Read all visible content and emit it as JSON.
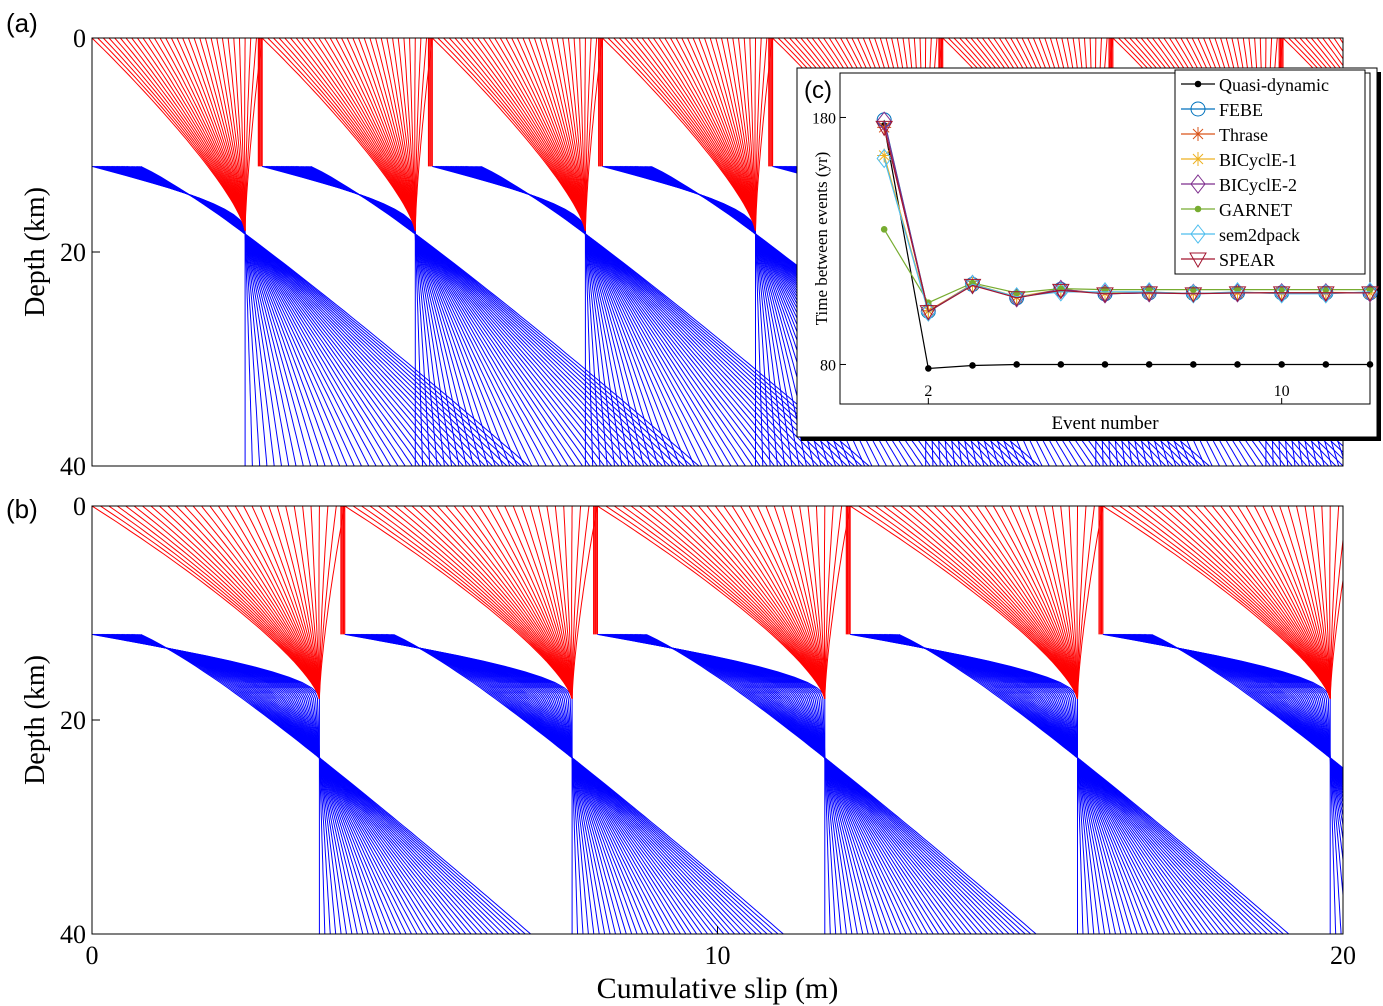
{
  "chart_data": [
    {
      "type": "contour",
      "panel_label": "(a)",
      "ylabel": "Depth (km)",
      "xlim": [
        0,
        20
      ],
      "ylim": [
        0,
        40
      ],
      "yticks": [
        0,
        20,
        40
      ],
      "y_inverted": true,
      "line_colors": [
        "#0000ff",
        "#ff0000"
      ]
    },
    {
      "type": "contour",
      "panel_label": "(b)",
      "ylabel": "Depth (km)",
      "xlabel": "Cumulative slip (m)",
      "xlim": [
        0,
        20
      ],
      "ylim": [
        0,
        40
      ],
      "xticks": [
        0,
        10,
        20
      ],
      "yticks": [
        0,
        20,
        40
      ],
      "y_inverted": true,
      "line_colors": [
        "#0000ff",
        "#ff0000"
      ]
    },
    {
      "type": "line",
      "panel_label": "(c)",
      "xlabel": "Event number",
      "ylabel": "Time between events (yr)",
      "x": [
        1,
        2,
        3,
        4,
        5,
        6,
        7,
        8,
        9,
        10,
        11,
        12
      ],
      "xlim": [
        0,
        12
      ],
      "xticks": [
        2,
        10
      ],
      "ylim": [
        64,
        198
      ],
      "yticks": [
        80,
        180
      ],
      "series": [
        {
          "name": "Quasi-dynamic",
          "color": "#000000",
          "marker": "dot",
          "values": [
            176.8,
            78.4,
            79.6,
            80,
            80,
            80,
            80,
            80,
            80,
            80,
            80,
            80
          ]
        },
        {
          "name": "FEBE",
          "color": "#0072bd",
          "marker": "circle",
          "values": [
            179,
            101.5,
            112.4,
            107,
            110.4,
            108.6,
            109,
            108.8,
            109,
            109,
            109,
            109
          ]
        },
        {
          "name": "Thrase",
          "color": "#d95319",
          "marker": "star",
          "values": [
            176,
            101.8,
            112.2,
            107.2,
            110.2,
            108.8,
            109.2,
            108.8,
            109,
            109,
            109,
            109
          ]
        },
        {
          "name": "BICyclE-1",
          "color": "#edb120",
          "marker": "star",
          "values": [
            164.6,
            101.6,
            112.6,
            107.4,
            110.4,
            108.8,
            109.2,
            108.8,
            109.2,
            109,
            109.2,
            109
          ]
        },
        {
          "name": "BICyclE-2",
          "color": "#7e2f8e",
          "marker": "diamond",
          "values": [
            178.5,
            101.4,
            112.4,
            107,
            110.4,
            108.6,
            109,
            108.8,
            109,
            109,
            109,
            109
          ]
        },
        {
          "name": "GARNET",
          "color": "#77ac30",
          "marker": "dot",
          "values": [
            134.7,
            105,
            113,
            109,
            110.7,
            110.3,
            110.3,
            110.3,
            110.3,
            110.3,
            110.3,
            110.3
          ]
        },
        {
          "name": "sem2dpack",
          "color": "#4dbeee",
          "marker": "diamond",
          "values": [
            163.4,
            101.2,
            112.4,
            107.4,
            109.4,
            109.4,
            109.4,
            108.6,
            109.4,
            108.6,
            108.6,
            109.4
          ]
        },
        {
          "name": "SPEAR",
          "color": "#a2142f",
          "marker": "triangle",
          "values": [
            176,
            101.4,
            112,
            107,
            110,
            108.6,
            109,
            108.6,
            109,
            109,
            109,
            109
          ]
        }
      ]
    }
  ]
}
